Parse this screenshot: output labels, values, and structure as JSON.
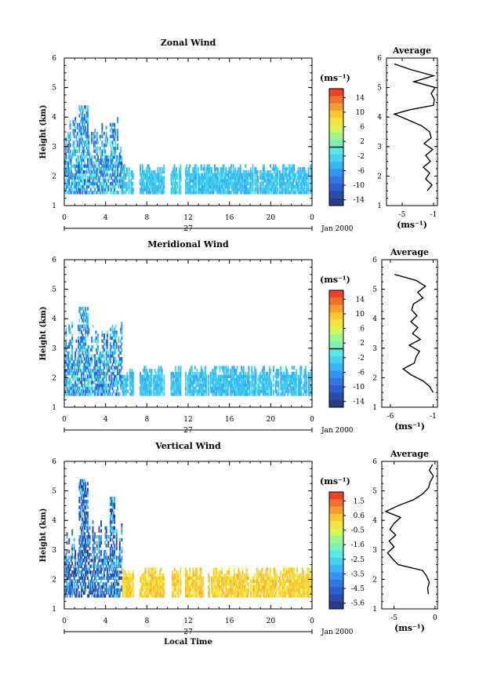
{
  "chart_data": [
    {
      "type": "heatmap",
      "title": "Zonal Wind",
      "ylabel": "Height (km)",
      "ylim": [
        1,
        6
      ],
      "y_ticks": [
        "1",
        "2",
        "3",
        "4",
        "5",
        "6"
      ],
      "x_ticks": [
        "0",
        "4",
        "8",
        "12",
        "16",
        "20",
        "0"
      ],
      "xlim": [
        0,
        24
      ],
      "date_day": "27",
      "date_label": "Jan 2000",
      "colorbar": {
        "unit": "(ms⁻¹)",
        "ticks": [
          "14",
          "10",
          "6",
          "2",
          "-2",
          "-6",
          "-10",
          "-14"
        ],
        "range": [
          -16,
          16
        ],
        "zero_line": 0
      },
      "heatmap_summary": {
        "lower_layer_km": [
          1.4,
          2.4
        ],
        "lower_layer_value_range": [
          -6,
          -2
        ],
        "early_plume_hours": [
          0,
          5.5
        ],
        "early_plume_top_km": 4.4,
        "early_plume_value_range": [
          -12,
          0
        ]
      },
      "profile": {
        "title": "Average",
        "xlabel": "(ms⁻¹)",
        "x_ticks": [
          "-5",
          "-1"
        ],
        "xlim": [
          -7,
          -0.5
        ],
        "ylim": [
          1,
          6
        ],
        "y_ticks": [
          "1",
          "2",
          "3",
          "4",
          "5",
          "6"
        ],
        "height": [
          1.5,
          1.7,
          1.9,
          2.1,
          2.3,
          2.5,
          2.7,
          2.9,
          3.1,
          3.3,
          3.5,
          3.7,
          3.9,
          4.1,
          4.25,
          4.4,
          4.6,
          4.8,
          5.0,
          5.2,
          5.4,
          5.6,
          5.8
        ],
        "values": [
          -1.8,
          -1.2,
          -2.0,
          -1.5,
          -2.3,
          -1.4,
          -2.0,
          -1.1,
          -2.2,
          -1.3,
          -1.5,
          -2.5,
          -4.2,
          -6.0,
          -4.0,
          -1.0,
          -0.9,
          -1.3,
          -0.8,
          -3.5,
          -1.0,
          -3.8,
          -6.0
        ]
      }
    },
    {
      "type": "heatmap",
      "title": "Meridional Wind",
      "ylabel": "Height (km)",
      "ylim": [
        1,
        6
      ],
      "y_ticks": [
        "1",
        "2",
        "3",
        "4",
        "5",
        "6"
      ],
      "x_ticks": [
        "0",
        "4",
        "8",
        "12",
        "16",
        "20",
        "0"
      ],
      "xlim": [
        0,
        24
      ],
      "date_day": "27",
      "date_label": "Jan 2000",
      "colorbar": {
        "unit": "(ms⁻¹)",
        "ticks": [
          "14",
          "10",
          "6",
          "2",
          "-2",
          "-6",
          "-10",
          "-14"
        ],
        "range": [
          -16,
          16
        ],
        "zero_line": 0
      },
      "heatmap_summary": {
        "lower_layer_km": [
          1.4,
          2.4
        ],
        "lower_layer_value_range": [
          -6,
          -2
        ],
        "early_plume_hours": [
          0,
          5.5
        ],
        "early_plume_top_km": 4.4,
        "early_plume_value_range": [
          -12,
          0
        ]
      },
      "profile": {
        "title": "Average",
        "xlabel": "(ms⁻¹)",
        "x_ticks": [
          "-6",
          "-1"
        ],
        "xlim": [
          -7,
          -0.5
        ],
        "ylim": [
          1,
          6
        ],
        "y_ticks": [
          "1",
          "2",
          "3",
          "4",
          "5",
          "6"
        ],
        "height": [
          1.5,
          1.7,
          1.9,
          2.1,
          2.3,
          2.5,
          2.7,
          2.9,
          3.1,
          3.3,
          3.5,
          3.7,
          3.9,
          4.1,
          4.3,
          4.5,
          4.7,
          4.9,
          5.1,
          5.3,
          5.5
        ],
        "values": [
          -1.0,
          -1.4,
          -2.2,
          -3.6,
          -4.5,
          -3.2,
          -3.0,
          -2.6,
          -3.8,
          -2.5,
          -3.4,
          -2.8,
          -3.6,
          -2.9,
          -3.5,
          -3.3,
          -2.2,
          -2.8,
          -1.9,
          -3.0,
          -5.5
        ]
      }
    },
    {
      "type": "heatmap",
      "title": "Vertical Wind",
      "ylabel": "Height (km)",
      "xlabel": "Local Time",
      "ylim": [
        1,
        6
      ],
      "y_ticks": [
        "1",
        "2",
        "3",
        "4",
        "5",
        "6"
      ],
      "x_ticks": [
        "0",
        "4",
        "8",
        "12",
        "16",
        "20",
        "0"
      ],
      "xlim": [
        0,
        24
      ],
      "date_day": "27",
      "date_label": "Jan 2000",
      "colorbar": {
        "unit": "(ms⁻¹)",
        "ticks": [
          "1.5",
          "0.6",
          "-0.5",
          "-1.6",
          "-2.5",
          "-3.5",
          "-4.5",
          "-5.6"
        ],
        "range": [
          -6.0,
          2.0
        ],
        "zero_line": null
      },
      "heatmap_summary": {
        "lower_layer_km": [
          1.4,
          2.4
        ],
        "lower_layer_value_range": [
          -0.5,
          0.6
        ],
        "early_plume_hours": [
          0,
          5.5
        ],
        "early_plume_top_km": 5.3,
        "early_plume_value_range": [
          -6.0,
          -2.5
        ]
      },
      "profile": {
        "title": "Average",
        "xlabel": "(ms⁻¹)",
        "x_ticks": [
          "-5",
          "0"
        ],
        "xlim": [
          -6.5,
          0.3
        ],
        "ylim": [
          1,
          6
        ],
        "y_ticks": [
          "1",
          "2",
          "3",
          "4",
          "5",
          "6"
        ],
        "height": [
          1.5,
          1.7,
          1.9,
          2.1,
          2.3,
          2.5,
          2.7,
          2.9,
          3.1,
          3.3,
          3.5,
          3.7,
          3.9,
          4.1,
          4.3,
          4.5,
          4.7,
          4.9,
          5.1,
          5.3,
          5.5,
          5.7,
          5.9
        ],
        "values": [
          -0.8,
          -0.9,
          -0.7,
          -1.0,
          -1.5,
          -4.5,
          -5.2,
          -5.8,
          -5.0,
          -5.6,
          -4.8,
          -5.5,
          -5.0,
          -4.2,
          -6.0,
          -4.5,
          -2.6,
          -1.5,
          -0.8,
          -0.6,
          -0.2,
          -0.7,
          -0.3
        ]
      }
    }
  ]
}
